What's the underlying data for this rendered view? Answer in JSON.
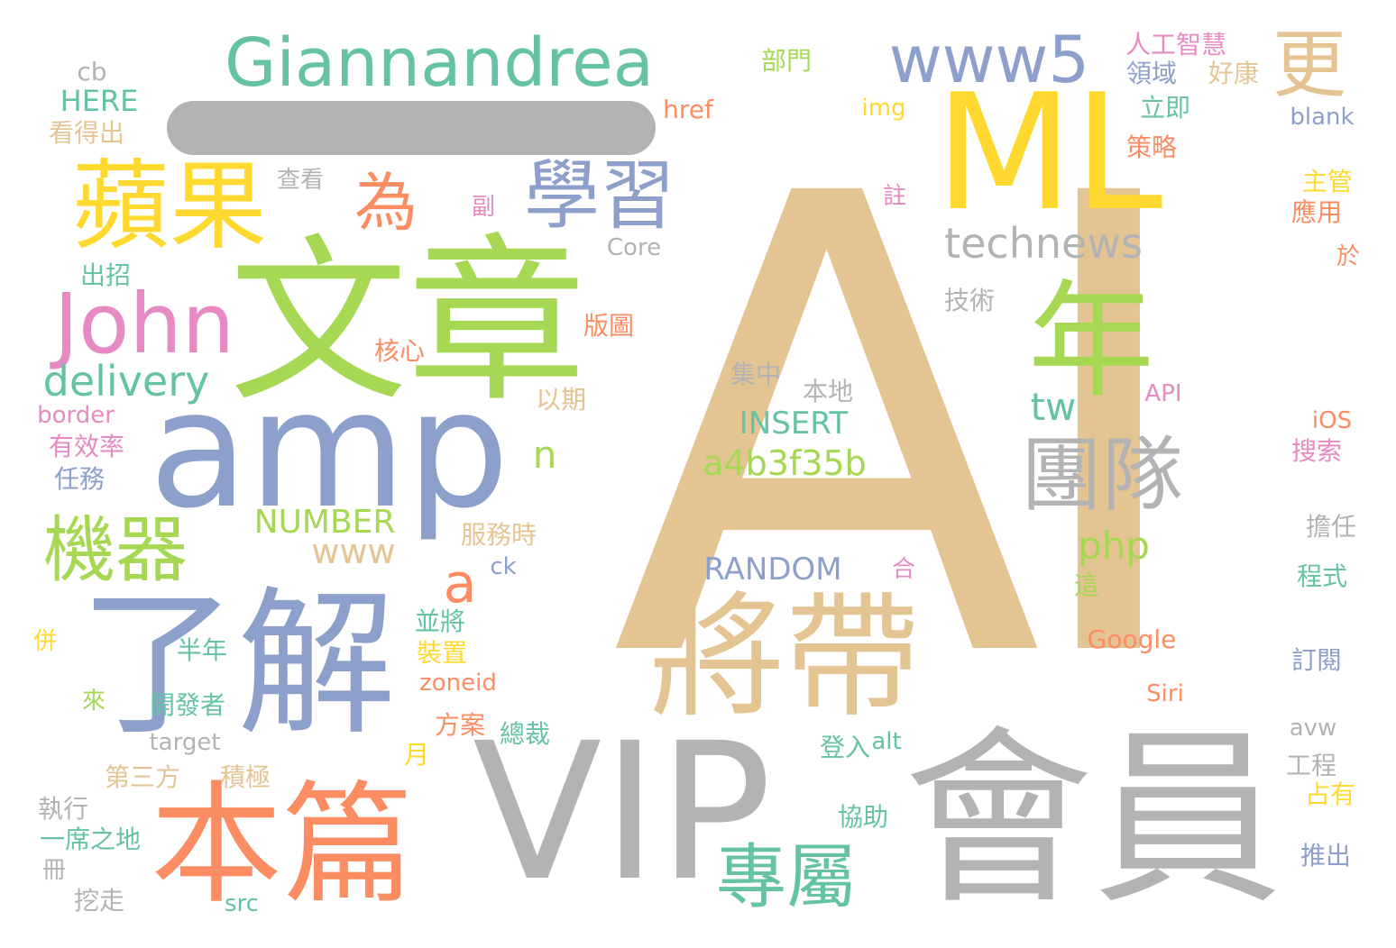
{
  "palette": {
    "tan": "#e5c494",
    "yellow": "#ffd92f",
    "gray": "#b3b3b3",
    "teal": "#66c2a5",
    "salmon": "#fc8d62",
    "blue": "#8da0cb",
    "pink": "#e78ac3",
    "green": "#a6d854"
  },
  "words": [
    {
      "text": "AI",
      "color": "tan"
    },
    {
      "text": "ML",
      "color": "yellow"
    },
    {
      "text": "VIP",
      "color": "gray"
    },
    {
      "text": "會員",
      "color": "gray"
    },
    {
      "text": "文章",
      "color": "green"
    },
    {
      "text": "amp",
      "color": "blue"
    },
    {
      "text": "了解",
      "color": "blue"
    },
    {
      "text": "本篇",
      "color": "salmon"
    },
    {
      "text": "將帶",
      "color": "tan"
    },
    {
      "text": "Giannandrea",
      "color": "teal"
    },
    {
      "text": "蘋果",
      "color": "yellow"
    },
    {
      "text": "John",
      "color": "pink"
    },
    {
      "text": "年",
      "color": "green"
    },
    {
      "text": "團隊",
      "color": "gray"
    },
    {
      "text": "學習",
      "color": "blue"
    },
    {
      "text": "機器",
      "color": "green"
    },
    {
      "text": "專屬",
      "color": "teal"
    },
    {
      "text": "www5",
      "color": "blue"
    },
    {
      "text": "更",
      "color": "tan"
    },
    {
      "text": "為",
      "color": "salmon"
    },
    {
      "text": "technews",
      "color": "gray"
    },
    {
      "text": "delivery",
      "color": "teal"
    },
    {
      "text": "a",
      "color": "salmon"
    },
    {
      "text": "php",
      "color": "green"
    },
    {
      "text": "tw",
      "color": "teal"
    },
    {
      "text": "n",
      "color": "green"
    },
    {
      "text": "a4b3f35b",
      "color": "green"
    },
    {
      "text": "INSERT",
      "color": "teal"
    },
    {
      "text": "NUMBER",
      "color": "green"
    },
    {
      "text": "RANDOM",
      "color": "blue"
    },
    {
      "text": "www",
      "color": "tan"
    },
    {
      "text": "cb",
      "color": "gray"
    },
    {
      "text": "HERE",
      "color": "teal"
    },
    {
      "text": "看得出",
      "color": "tan"
    },
    {
      "text": "人工智慧",
      "color": "pink"
    },
    {
      "text": "領域",
      "color": "blue"
    },
    {
      "text": "好康",
      "color": "tan"
    },
    {
      "text": "部門",
      "color": "green"
    },
    {
      "text": "立即",
      "color": "teal"
    },
    {
      "text": "href",
      "color": "salmon"
    },
    {
      "text": "img",
      "color": "yellow"
    },
    {
      "text": "blank",
      "color": "blue"
    },
    {
      "text": "策略",
      "color": "salmon"
    },
    {
      "text": "查看",
      "color": "gray"
    },
    {
      "text": "副",
      "color": "pink"
    },
    {
      "text": "註",
      "color": "pink"
    },
    {
      "text": "主管",
      "color": "yellow"
    },
    {
      "text": "應用",
      "color": "salmon"
    },
    {
      "text": "Core",
      "color": "gray"
    },
    {
      "text": "出招",
      "color": "teal"
    },
    {
      "text": "於",
      "color": "salmon"
    },
    {
      "text": "版圖",
      "color": "salmon"
    },
    {
      "text": "技術",
      "color": "gray"
    },
    {
      "text": "核心",
      "color": "salmon"
    },
    {
      "text": "集中",
      "color": "gray"
    },
    {
      "text": "本地",
      "color": "gray"
    },
    {
      "text": "以期",
      "color": "tan"
    },
    {
      "text": "API",
      "color": "pink"
    },
    {
      "text": "border",
      "color": "pink"
    },
    {
      "text": "iOS",
      "color": "salmon"
    },
    {
      "text": "有效率",
      "color": "pink"
    },
    {
      "text": "搜索",
      "color": "pink"
    },
    {
      "text": "任務",
      "color": "blue"
    },
    {
      "text": "服務時",
      "color": "tan"
    },
    {
      "text": "擔任",
      "color": "gray"
    },
    {
      "text": "ck",
      "color": "blue"
    },
    {
      "text": "合",
      "color": "pink"
    },
    {
      "text": "程式",
      "color": "teal"
    },
    {
      "text": "這",
      "color": "green"
    },
    {
      "text": "並將",
      "color": "teal"
    },
    {
      "text": "併",
      "color": "yellow"
    },
    {
      "text": "半年",
      "color": "teal"
    },
    {
      "text": "裝置",
      "color": "yellow"
    },
    {
      "text": "Google",
      "color": "salmon"
    },
    {
      "text": "訂閱",
      "color": "blue"
    },
    {
      "text": "zoneid",
      "color": "salmon"
    },
    {
      "text": "來",
      "color": "green"
    },
    {
      "text": "開發者",
      "color": "teal"
    },
    {
      "text": "Siri",
      "color": "salmon"
    },
    {
      "text": "方案",
      "color": "salmon"
    },
    {
      "text": "avw",
      "color": "gray"
    },
    {
      "text": "target",
      "color": "gray"
    },
    {
      "text": "總裁",
      "color": "teal"
    },
    {
      "text": "登入",
      "color": "teal"
    },
    {
      "text": "alt",
      "color": "teal"
    },
    {
      "text": "月",
      "color": "yellow"
    },
    {
      "text": "工程",
      "color": "gray"
    },
    {
      "text": "第三方",
      "color": "tan"
    },
    {
      "text": "積極",
      "color": "tan"
    },
    {
      "text": "占有",
      "color": "yellow"
    },
    {
      "text": "執行",
      "color": "gray"
    },
    {
      "text": "協助",
      "color": "teal"
    },
    {
      "text": "一席之地",
      "color": "teal"
    },
    {
      "text": "推出",
      "color": "blue"
    },
    {
      "text": "冊",
      "color": "gray"
    },
    {
      "text": "挖走",
      "color": "gray"
    },
    {
      "text": "src",
      "color": "teal"
    }
  ]
}
